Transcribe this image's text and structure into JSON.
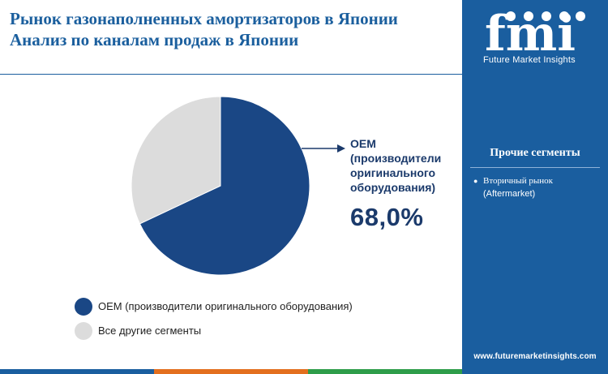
{
  "title": {
    "line1": "Рынок газонаполненных амортизаторов в Японии",
    "line2": "Анализ по каналам продаж в Японии"
  },
  "brand": {
    "logo_text": "fmi",
    "tagline": "Future Market Insights",
    "website": "www.futuremarketinsights.com",
    "color": "#1a5e9f"
  },
  "chart_data": {
    "type": "pie",
    "title": "Анализ по каналам продаж в Японии",
    "slices": [
      {
        "label": "OEM (производители оригинального оборудования)",
        "value": 68.0,
        "color": "#1a4785"
      },
      {
        "label": "Все другие сегменты",
        "value": 32.0,
        "color": "#dcdcdc"
      }
    ],
    "callout": {
      "lines": [
        "OEM",
        "(производители",
        "оригинального",
        "оборудования)"
      ],
      "value_label": "68,0%"
    },
    "legend": [
      {
        "label": "OEM (производители оригинального оборудования)",
        "color": "#1a4785"
      },
      {
        "label": "Все другие сегменты",
        "color": "#dcdcdc"
      }
    ]
  },
  "sidebar": {
    "heading": "Прочие сегменты",
    "items": [
      {
        "line1": "Вторичный рынок",
        "line2": "(Aftermarket)"
      }
    ]
  },
  "bottom_strip_colors": [
    "#1a5e9f",
    "#e36f1e",
    "#2e9d4a",
    "#1a5e9f"
  ]
}
